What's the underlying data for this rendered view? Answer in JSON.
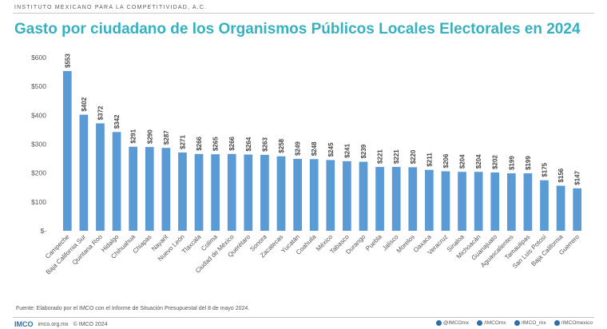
{
  "header": {
    "org": "INSTITUTO MEXICANO PARA LA COMPETITIVIDAD, A.C."
  },
  "chart_data": {
    "type": "bar",
    "title": "Gasto por ciudadano de los Organismos Públicos Locales Electorales en 2024",
    "xlabel": "",
    "ylabel": "",
    "ylim": [
      0,
      600
    ],
    "yticks": [
      "$-",
      "$100",
      "$200",
      "$300",
      "$400",
      "$500",
      "$600"
    ],
    "categories": [
      "Campeche",
      "Baja California Sur",
      "Quintana Roo",
      "Hidalgo",
      "Chihuahua",
      "Chiapas",
      "Nayarit",
      "Nuevo León",
      "Tlaxcala",
      "Colima",
      "Ciudad de México",
      "Querétaro",
      "Sonora",
      "Zacatecas",
      "Yucatán",
      "Coahuila",
      "México",
      "Tabasco",
      "Durango",
      "Puebla",
      "Jalisco",
      "Morelos",
      "Oaxaca",
      "Veracruz",
      "Sinaloa",
      "Michoacán",
      "Guanajuato",
      "Aguascalientes",
      "Tamaulipas",
      "San Luis Potosí",
      "Baja California",
      "Guerrero"
    ],
    "values": [
      553,
      402,
      372,
      342,
      291,
      290,
      287,
      271,
      266,
      265,
      266,
      264,
      263,
      258,
      249,
      248,
      245,
      241,
      239,
      221,
      221,
      220,
      211,
      206,
      204,
      204,
      202,
      199,
      199,
      175,
      156,
      147
    ],
    "labels": [
      "$553",
      "$402",
      "$372",
      "$342",
      "$291",
      "$290",
      "$287",
      "$271",
      "$266",
      "$265",
      "$266",
      "$264",
      "$263",
      "$258",
      "$249",
      "$248",
      "$245",
      "$241",
      "$239",
      "$221",
      "$221",
      "$220",
      "$211",
      "$206",
      "$204",
      "$204",
      "$202",
      "$199",
      "$199",
      "$175",
      "$156",
      "$147"
    ],
    "bar_color": "#5b9bd5",
    "grid": false,
    "legend": "none"
  },
  "source": "Fuente: Elaborado por el IMCO con el Informe de Situación Presupuestal del 8 de mayo 2024.",
  "footer": {
    "logo": "IMCO",
    "site": "imco.org.mx",
    "copyright": "© IMCO 2024",
    "social": [
      "@IMCOmx",
      "/IMCOmx",
      "/IMCO_mx",
      "/IMCOmexico"
    ]
  },
  "colors": {
    "title": "#35b1bf",
    "bars": "#5b9bd5"
  }
}
